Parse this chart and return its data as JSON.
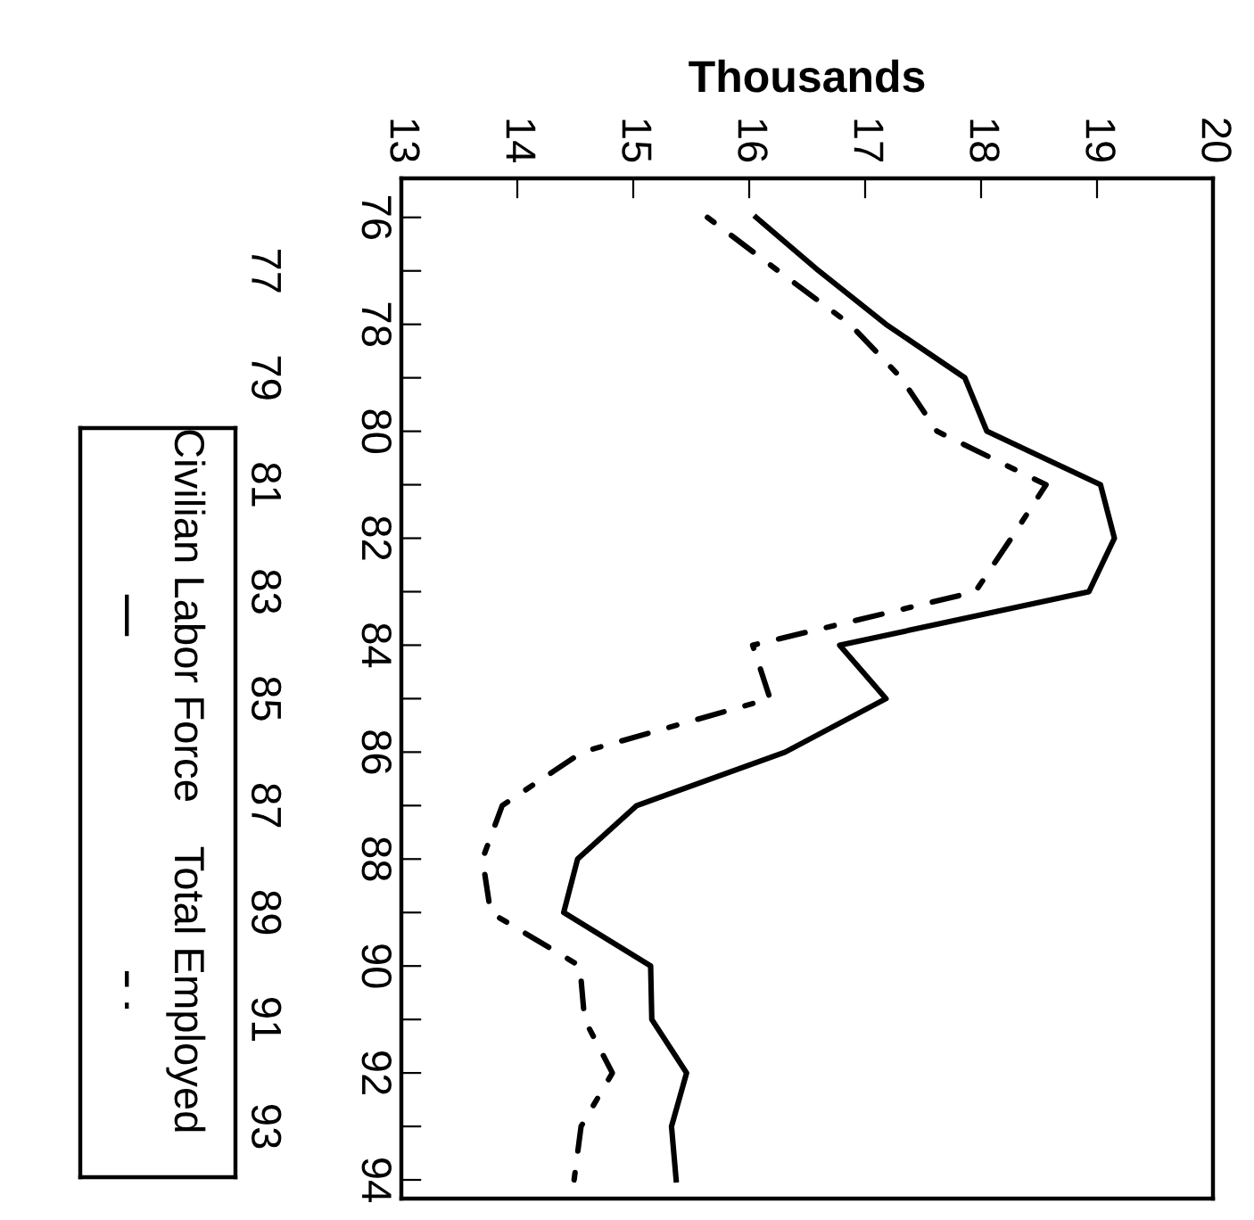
{
  "chart_data": {
    "type": "line",
    "xlabel": "Thousands",
    "series": [
      {
        "name": "Civilian Labor Force",
        "color": "#000000",
        "line_style": "solid",
        "x": [
          16.06,
          16.6,
          17.18,
          17.86,
          18.05,
          19.03,
          19.15,
          18.93,
          16.78,
          17.18,
          16.31,
          15.03,
          14.52,
          14.4,
          15.15,
          15.16,
          15.46,
          15.33,
          15.37
        ],
        "values": [
          76,
          77,
          78,
          79,
          80,
          81,
          82,
          83,
          84,
          85,
          86,
          87,
          88,
          89,
          90,
          91,
          92,
          93,
          94
        ]
      },
      {
        "name": "Total Employed",
        "color": "#000000",
        "line_style": "dotted",
        "x": [
          15.64,
          16.25,
          16.87,
          17.31,
          17.62,
          18.56,
          18.26,
          17.95,
          16.03,
          16.18,
          14.56,
          13.87,
          13.7,
          13.77,
          14.54,
          14.58,
          14.82,
          14.55,
          14.49
        ],
        "values": [
          76,
          77,
          78,
          79,
          80,
          81,
          82,
          83,
          84,
          85,
          86,
          87,
          88,
          89,
          90,
          91,
          92,
          93,
          94
        ]
      }
    ],
    "xlim": [
      13,
      20
    ],
    "xticks": [
      13,
      14,
      15,
      16,
      17,
      18,
      19,
      20
    ],
    "ylim": [
      94.35,
      75.27
    ],
    "yticks": [
      76,
      {
        "value": 77,
        "label": null
      },
      78,
      {
        "value": 79,
        "label": null
      },
      80,
      {
        "value": 81,
        "label": null
      },
      82,
      {
        "value": 83,
        "label": null
      },
      84,
      {
        "value": 85,
        "label": null
      },
      86,
      {
        "value": 87,
        "label": null
      },
      88,
      {
        "value": 89,
        "label": null
      },
      90,
      {
        "value": 91,
        "label": null
      },
      92,
      {
        "value": 93,
        "label": null
      },
      94
    ],
    "y2lim": [
      94.35,
      75.27
    ],
    "y2ticks": [
      77,
      79,
      81,
      83,
      85,
      87,
      89,
      91,
      93
    ],
    "legend": "left",
    "grid": false,
    "marker": "none"
  }
}
